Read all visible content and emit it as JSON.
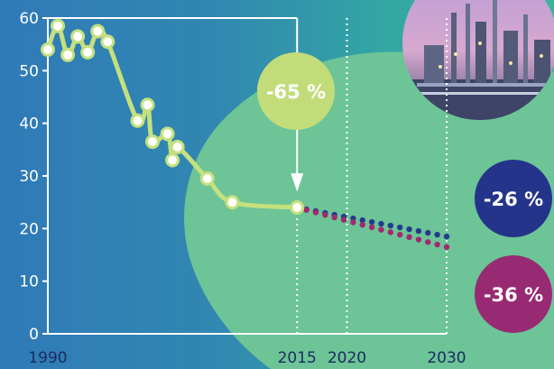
{
  "colors": {
    "blob": "#6cc497",
    "line": "#c5e07e",
    "projection_low": "#263a8c",
    "projection_high": "#a3286f",
    "badge_main": "#c3dc7a",
    "badge_blue": "#24348a",
    "badge_purple": "#982a74",
    "axis": "#ffffff"
  },
  "chart_data": {
    "type": "line",
    "x_range": [
      1990,
      2030
    ],
    "ylim": [
      0,
      60
    ],
    "y_ticks": [
      "0",
      "10",
      "20",
      "30",
      "40",
      "50",
      "60"
    ],
    "x_ticks": [
      {
        "value": 1990,
        "label": "1990"
      },
      {
        "value": 2015,
        "label": "2015"
      },
      {
        "value": 2020,
        "label": "2020"
      },
      {
        "value": 2030,
        "label": "2030"
      }
    ],
    "vertical_reference_lines": [
      2015,
      2020,
      2030
    ],
    "series": [
      {
        "points": [
          [
            1990,
            54
          ],
          [
            1991,
            58.5
          ],
          [
            1992,
            53
          ],
          [
            1993,
            56.5
          ],
          [
            1994,
            53.5
          ],
          [
            1995,
            57.5
          ],
          [
            1996,
            55.5
          ],
          [
            1999,
            40.5
          ],
          [
            2000,
            43.5
          ],
          [
            2000.5,
            36.5
          ],
          [
            2002,
            38
          ],
          [
            2002.5,
            33
          ],
          [
            2003,
            35.5
          ],
          [
            2006,
            29.5
          ],
          [
            2008.5,
            25
          ],
          [
            2015,
            24
          ]
        ]
      },
      {
        "projection": true,
        "from": [
          2015,
          24
        ],
        "to": [
          2030,
          18.5
        ]
      },
      {
        "projection": true,
        "from": [
          2015,
          24
        ],
        "to": [
          2030,
          16.5
        ]
      }
    ],
    "annotations": [
      {
        "label": "-65 %"
      },
      {
        "label": "-26 %"
      },
      {
        "label": "-36 %"
      }
    ]
  }
}
